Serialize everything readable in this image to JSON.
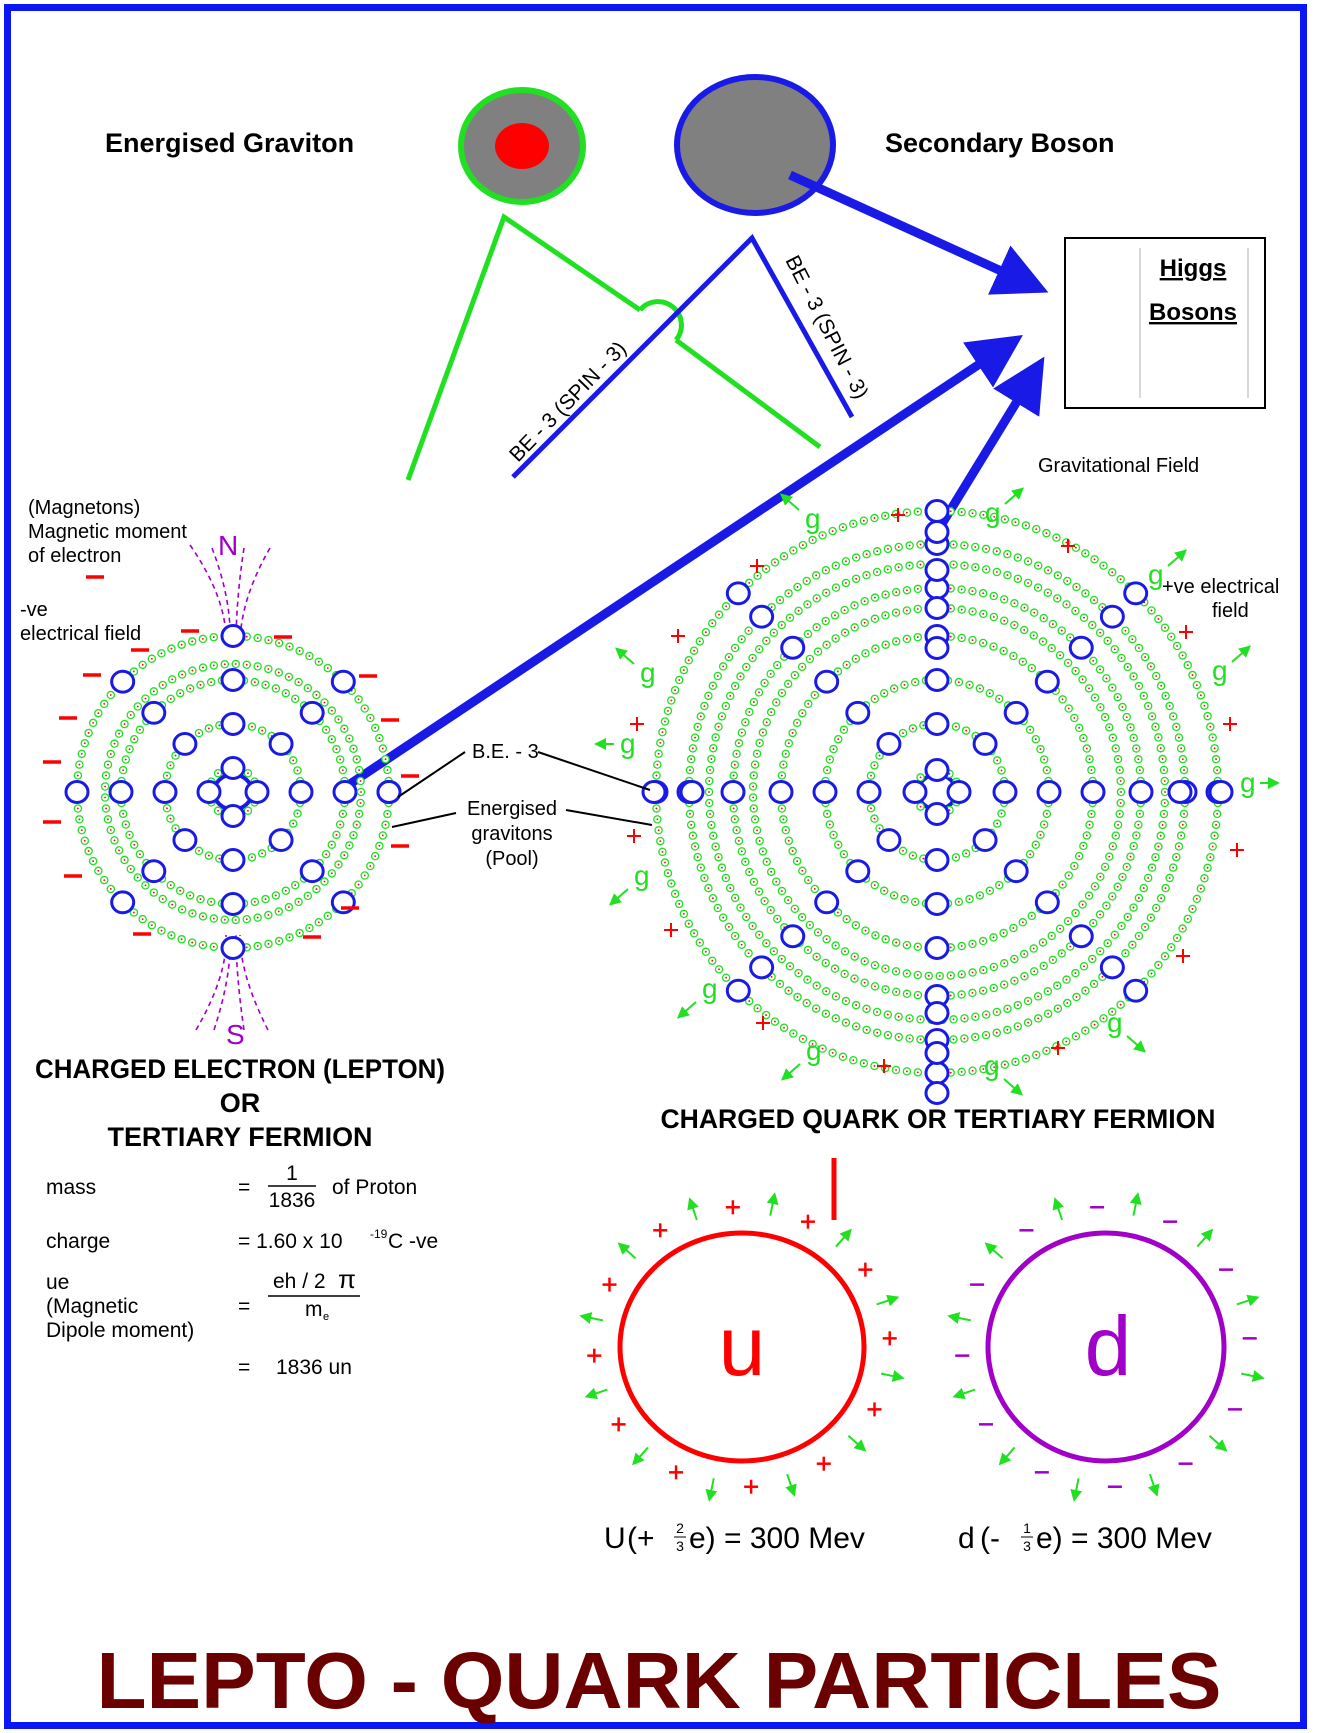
{
  "colors": {
    "border": "#0b17f2",
    "blue": "#1a1ae6",
    "green": "#21e021",
    "red": "#ff0000",
    "purple": "#a000c8",
    "grey": "#808080",
    "title": "#6b0000"
  },
  "top": {
    "energised_graviton": "Energised Graviton",
    "secondary_boson": "Secondary Boson",
    "higgs_line1": "Higgs",
    "higgs_line2": "Bosons",
    "be3_spin_left": "BE - 3 (SPIN - 3)",
    "be3_spin_right": "BE - 3 (SPIN - 3)"
  },
  "electron": {
    "magnetons_line1": "(Magnetons)",
    "magnetons_line2": "Magnetic moment",
    "magnetons_line3": "of electron",
    "north": "N",
    "south": "S",
    "neg_field_line1": "-ve",
    "neg_field_line2": "electrical field",
    "title_line1": "CHARGED ELECTRON (LEPTON)",
    "title_line2": "OR",
    "title_line3": "TERTIARY FERMION"
  },
  "center_labels": {
    "be3": "B.E. - 3",
    "pool_line1": "Energised",
    "pool_line2": "gravitons",
    "pool_line3": "(Pool)"
  },
  "quark": {
    "grav_field": "Gravitational Field",
    "pos_field_line1": "+ve electrical",
    "pos_field_line2": "field",
    "g": "g",
    "plus": "+",
    "minus": "–",
    "title": "CHARGED QUARK OR TERTIARY FERMION"
  },
  "properties": {
    "mass_label": "mass",
    "mass_eq": "=",
    "mass_num": "1",
    "mass_den": "1836",
    "mass_suffix": "of Proton",
    "charge_label": "charge",
    "charge_value": "=  1.60 x 10",
    "charge_exp": "-19",
    "charge_suffix": "C -ve",
    "ue_line1": "ue",
    "ue_line2": "(Magnetic",
    "ue_line3": "Dipole moment)",
    "ue_eq": "=",
    "ue_num": "eh / 2",
    "ue_pi": "π",
    "ue_den": "m",
    "ue_den_sub": "e",
    "un_eq": "=",
    "un_value": "1836 un"
  },
  "up_down": {
    "u_letter": "u",
    "d_letter": "d",
    "u_formula_prefix": "U",
    "u_formula_open": "(+",
    "u_frac_num": "2",
    "u_frac_den": "3",
    "u_formula_close": "e) = 300 Mev",
    "d_formula_prefix": "d",
    "d_formula_open": "(-",
    "d_frac_num": "1",
    "d_frac_den": "3",
    "d_formula_close": "e) = 300 Mev"
  },
  "main_title": "LEPTO - QUARK PARTICLES"
}
